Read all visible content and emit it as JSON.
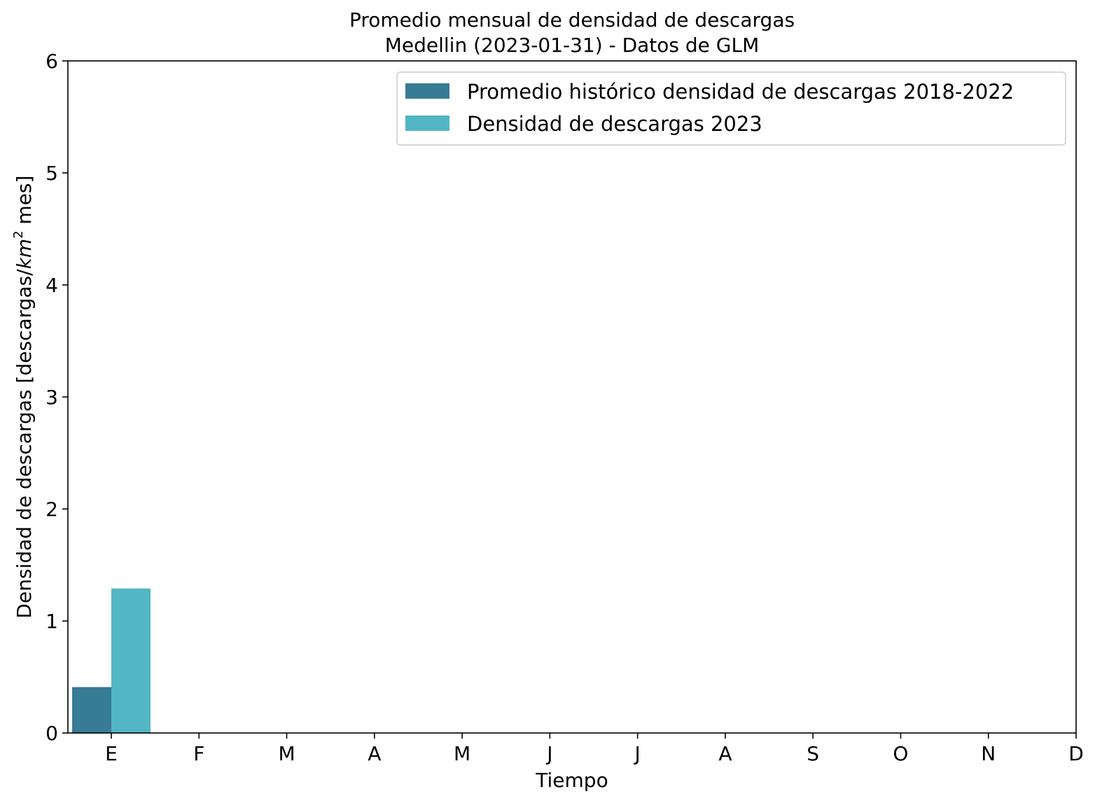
{
  "chart_data": {
    "type": "bar",
    "title": "Promedio mensual de densidad de descargas",
    "subtitle": "Medellin (2023-01-31) - Datos de GLM",
    "xlabel": "Tiempo",
    "ylabel_main": "Densidad de descargas [descargas/",
    "ylabel_unit_base": "km",
    "ylabel_unit_exp": "2",
    "ylabel_tail": " mes]",
    "categories": [
      "E",
      "F",
      "M",
      "A",
      "M",
      "J",
      "J",
      "A",
      "S",
      "O",
      "N",
      "D"
    ],
    "ylim": [
      0,
      6
    ],
    "yticks": [
      "0",
      "1",
      "2",
      "3",
      "4",
      "5",
      "6"
    ],
    "grid": false,
    "legend_position": "top-right",
    "series": [
      {
        "name": "Promedio histórico densidad de descargas 2018-2022",
        "color": "#387b95",
        "values": [
          0.41,
          null,
          null,
          null,
          null,
          null,
          null,
          null,
          null,
          null,
          null,
          null
        ]
      },
      {
        "name": "Densidad de descargas 2023",
        "color": "#52b6c5",
        "values": [
          1.29,
          null,
          null,
          null,
          null,
          null,
          null,
          null,
          null,
          null,
          null,
          null
        ]
      }
    ]
  }
}
